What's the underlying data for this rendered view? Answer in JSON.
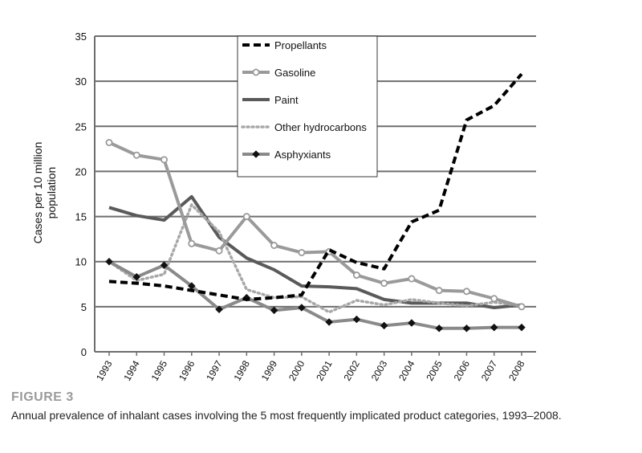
{
  "figure": {
    "label": "FIGURE 3",
    "caption": "Annual prevalence of inhalant cases involving the 5 most frequently implicated product categories, 1993–2008."
  },
  "chart_data": {
    "type": "line",
    "ylabel_lines": [
      "Cases per 10 million",
      "population"
    ],
    "xlabel": "",
    "ylim": [
      0,
      35
    ],
    "yticks": [
      0,
      5,
      10,
      15,
      20,
      25,
      30,
      35
    ],
    "grid": true,
    "legend_position": "top-center",
    "categories": [
      "1993",
      "1994",
      "1995",
      "1996",
      "1997",
      "1998",
      "1999",
      "2000",
      "2001",
      "2002",
      "2003",
      "2004",
      "2005",
      "2006",
      "2007",
      "2008"
    ],
    "series": [
      {
        "name": "Propellants",
        "color": "#000000",
        "style": "dashed",
        "marker": "none",
        "values": [
          7.8,
          7.6,
          7.3,
          6.8,
          6.3,
          5.8,
          6.0,
          6.3,
          11.3,
          9.9,
          9.2,
          14.4,
          15.7,
          25.7,
          27.3,
          30.8
        ]
      },
      {
        "name": "Gasoline",
        "color": "#9a9a9a",
        "style": "solid",
        "marker": "circle",
        "values": [
          23.2,
          21.8,
          21.3,
          12.0,
          11.2,
          15.0,
          11.8,
          11.0,
          11.1,
          8.5,
          7.6,
          8.1,
          6.8,
          6.7,
          5.9,
          5.0
        ]
      },
      {
        "name": "Paint",
        "color": "#5a5a5a",
        "style": "solid",
        "marker": "none",
        "values": [
          16.0,
          15.1,
          14.6,
          17.2,
          12.7,
          10.4,
          9.1,
          7.3,
          7.2,
          7.0,
          5.8,
          5.4,
          5.4,
          5.4,
          4.9,
          5.2
        ]
      },
      {
        "name": "Other hydrocarbons",
        "color": "#a8a8a8",
        "style": "dotted",
        "marker": "none",
        "values": [
          10.0,
          7.9,
          8.6,
          16.3,
          13.3,
          6.9,
          6.0,
          6.1,
          4.4,
          5.7,
          5.2,
          5.8,
          5.4,
          5.1,
          5.5,
          5.1
        ]
      },
      {
        "name": "Asphyxiants",
        "color": "#8a8a8a",
        "style": "solid",
        "marker": "diamond",
        "values": [
          10.0,
          8.3,
          9.6,
          7.3,
          4.7,
          6.0,
          4.6,
          4.9,
          3.3,
          3.6,
          2.9,
          3.2,
          2.6,
          2.6,
          2.7,
          2.7
        ]
      }
    ]
  }
}
